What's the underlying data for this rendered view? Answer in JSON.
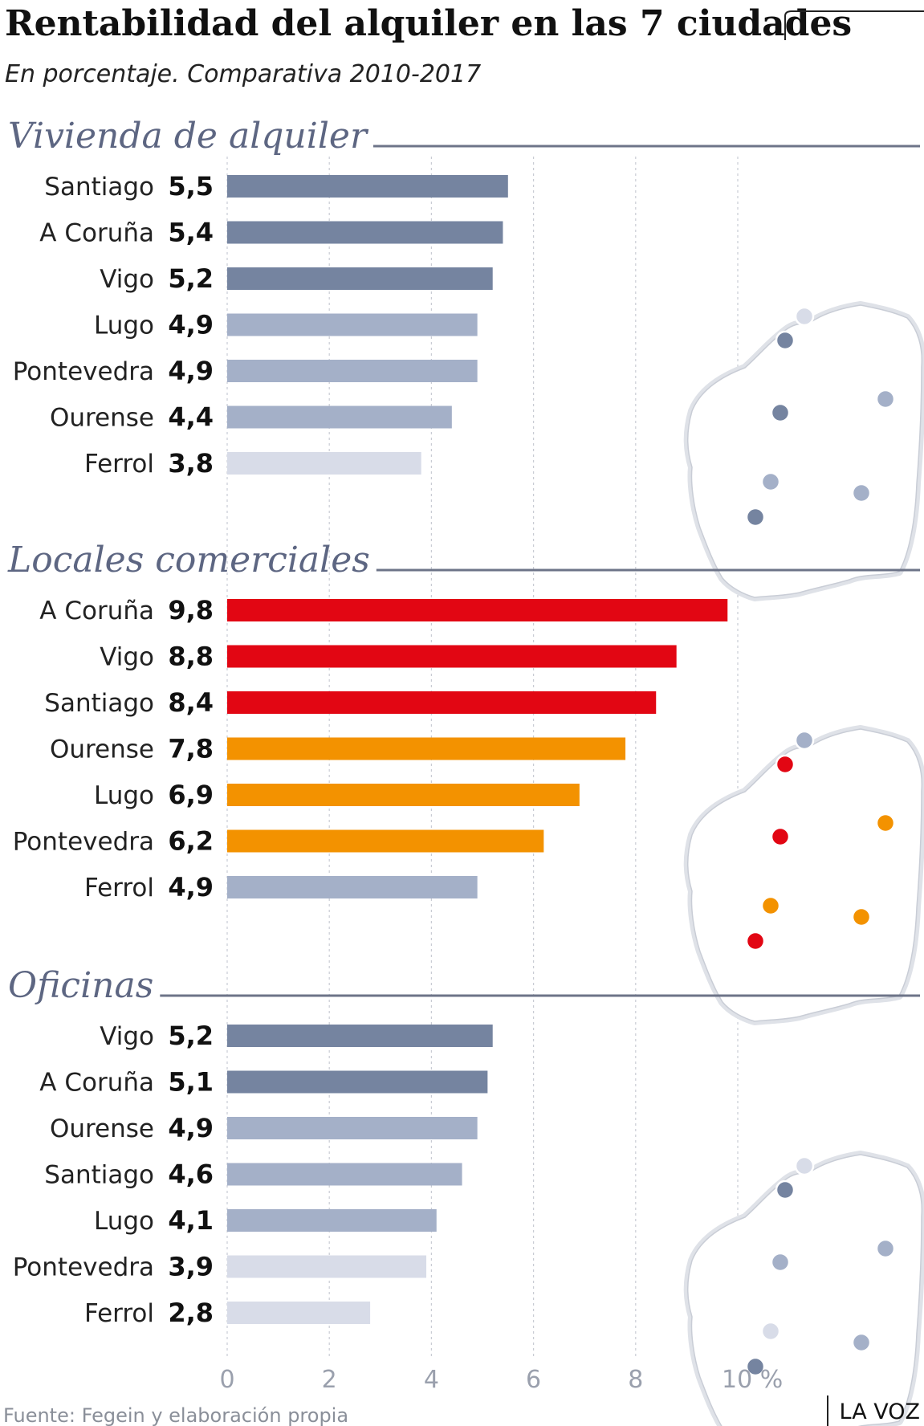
{
  "header": {
    "title": "Rentabilidad del alquiler en las 7 ciudades",
    "subtitle": "En porcentaje. Comparativa 2010-2017"
  },
  "footer": {
    "source": "Fuente: Fegein y elaboración propia",
    "brand": "LA VOZ"
  },
  "colors": {
    "dark": "#7584a0",
    "mid": "#a4b0c8",
    "light": "#d8dce8",
    "red": "#e20613",
    "orange": "#f39200",
    "section_text": "#5d6682",
    "rule": "#6d7488",
    "grid": "#c9ccd4"
  },
  "map_cities": [
    "A Coruña",
    "Ferrol",
    "Santiago",
    "Lugo",
    "Pontevedra",
    "Ourense",
    "Vigo"
  ],
  "chart_data": [
    {
      "type": "bar",
      "orientation": "horizontal",
      "title": "Vivienda de alquiler",
      "categories": [
        "Santiago",
        "A Coruña",
        "Vigo",
        "Lugo",
        "Pontevedra",
        "Ourense",
        "Ferrol"
      ],
      "values": [
        5.5,
        5.4,
        5.2,
        4.9,
        4.9,
        4.4,
        3.8
      ],
      "value_labels": [
        "5,5",
        "5,4",
        "5,2",
        "4,9",
        "4,9",
        "4,4",
        "3,8"
      ],
      "bar_colors": [
        "dark",
        "dark",
        "dark",
        "mid",
        "mid",
        "mid",
        "light"
      ],
      "map_colors": {
        "Ferrol": "light",
        "A Coruña": "dark",
        "Santiago": "dark",
        "Lugo": "mid",
        "Pontevedra": "mid",
        "Ourense": "mid",
        "Vigo": "dark"
      },
      "xlim": [
        0,
        10
      ]
    },
    {
      "type": "bar",
      "orientation": "horizontal",
      "title": "Locales comerciales",
      "categories": [
        "A Coruña",
        "Vigo",
        "Santiago",
        "Ourense",
        "Lugo",
        "Pontevedra",
        "Ferrol"
      ],
      "values": [
        9.8,
        8.8,
        8.4,
        7.8,
        6.9,
        6.2,
        4.9
      ],
      "value_labels": [
        "9,8",
        "8,8",
        "8,4",
        "7,8",
        "6,9",
        "6,2",
        "4,9"
      ],
      "bar_colors": [
        "red",
        "red",
        "red",
        "orange",
        "orange",
        "orange",
        "mid"
      ],
      "map_colors": {
        "Ferrol": "mid",
        "A Coruña": "red",
        "Santiago": "red",
        "Lugo": "orange",
        "Pontevedra": "orange",
        "Ourense": "orange",
        "Vigo": "red"
      },
      "xlim": [
        0,
        10
      ]
    },
    {
      "type": "bar",
      "orientation": "horizontal",
      "title": "Oficinas",
      "categories": [
        "Vigo",
        "A Coruña",
        "Ourense",
        "Santiago",
        "Lugo",
        "Pontevedra",
        "Ferrol"
      ],
      "values": [
        5.2,
        5.1,
        4.9,
        4.6,
        4.1,
        3.9,
        2.8
      ],
      "value_labels": [
        "5,2",
        "5,1",
        "4,9",
        "4,6",
        "4,1",
        "3,9",
        "2,8"
      ],
      "bar_colors": [
        "dark",
        "dark",
        "mid",
        "mid",
        "mid",
        "light",
        "light"
      ],
      "map_colors": {
        "Ferrol": "light",
        "A Coruña": "dark",
        "Santiago": "mid",
        "Lugo": "mid",
        "Pontevedra": "light",
        "Ourense": "mid",
        "Vigo": "dark"
      },
      "xlim": [
        0,
        10
      ]
    }
  ],
  "x_axis": {
    "ticks": [
      0,
      2,
      4,
      6,
      8,
      10
    ],
    "tick_labels": [
      "0",
      "2",
      "4",
      "6",
      "8",
      "10 %"
    ]
  }
}
